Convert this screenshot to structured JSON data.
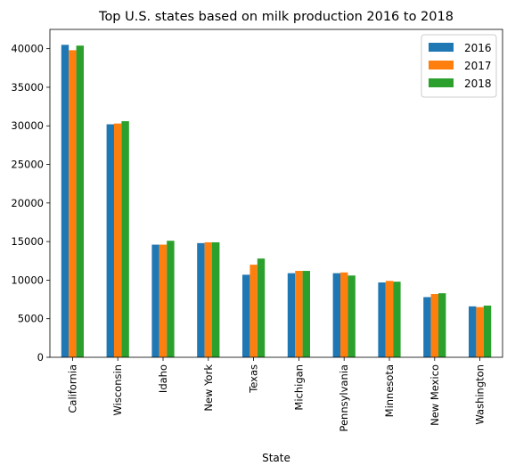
{
  "chart_data": {
    "type": "bar",
    "title": "Top U.S. states based on milk production 2016 to 2018",
    "xlabel": "State",
    "ylabel": "",
    "ylim": [
      0,
      42500
    ],
    "yticks": [
      0,
      5000,
      10000,
      15000,
      20000,
      25000,
      30000,
      35000,
      40000
    ],
    "categories": [
      "California",
      "Wisconsin",
      "Idaho",
      "New York",
      "Texas",
      "Michigan",
      "Pennsylvania",
      "Minnesota",
      "New Mexico",
      "Washington"
    ],
    "series": [
      {
        "name": "2016",
        "color": "#1f77b4",
        "values": [
          40500,
          30200,
          14600,
          14800,
          10700,
          10900,
          10900,
          9700,
          7800,
          6600
        ]
      },
      {
        "name": "2017",
        "color": "#ff7f0e",
        "values": [
          39800,
          30300,
          14600,
          14900,
          12000,
          11200,
          11000,
          9900,
          8200,
          6500
        ]
      },
      {
        "name": "2018",
        "color": "#2ca02c",
        "values": [
          40400,
          30600,
          15100,
          14900,
          12800,
          11200,
          10600,
          9800,
          8300,
          6700
        ]
      }
    ],
    "legend": "top-right",
    "grid": false
  }
}
